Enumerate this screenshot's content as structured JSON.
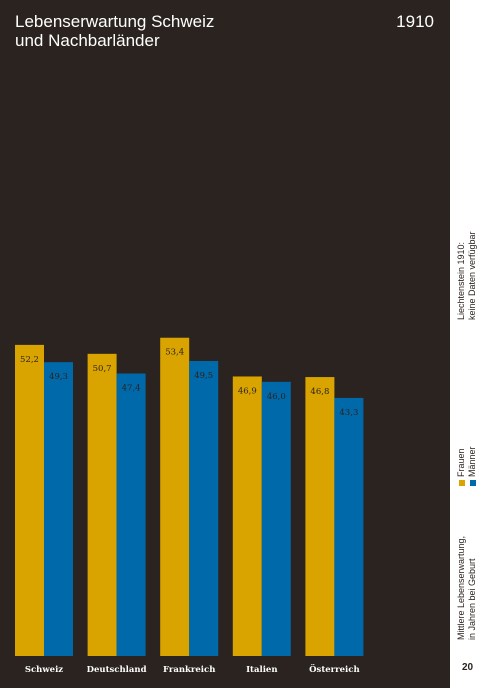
{
  "title_lines": [
    "Lebenserwartung Schweiz",
    "und Nachbarländer"
  ],
  "year": "1910",
  "note_lines": [
    "Liechtenstein 1910:",
    "keine Daten verfügbar"
  ],
  "ylabel_lines": [
    "Mittlere Lebenserwartung,",
    "in Jahren bei Geburt"
  ],
  "page_number": "20",
  "colors": {
    "background": "#2b231f",
    "frauen": "#d9a400",
    "maenner": "#0069aa",
    "text": "#ffffff"
  },
  "chart_data": {
    "type": "bar",
    "categories": [
      "Schweiz",
      "Deutschland",
      "Frankreich",
      "Italien",
      "Österreich"
    ],
    "series": [
      {
        "name": "Frauen",
        "values": [
          52.2,
          50.7,
          53.4,
          46.9,
          46.8
        ],
        "labels": [
          "52,2",
          "50,7",
          "53,4",
          "46,9",
          "46,8"
        ]
      },
      {
        "name": "Männer",
        "values": [
          49.3,
          47.4,
          49.5,
          46.0,
          43.3
        ],
        "labels": [
          "49,3",
          "47,4",
          "49,5",
          "46,0",
          "43,3"
        ]
      }
    ],
    "ylim": [
      0,
      100
    ],
    "grid": false,
    "legend": "right"
  }
}
